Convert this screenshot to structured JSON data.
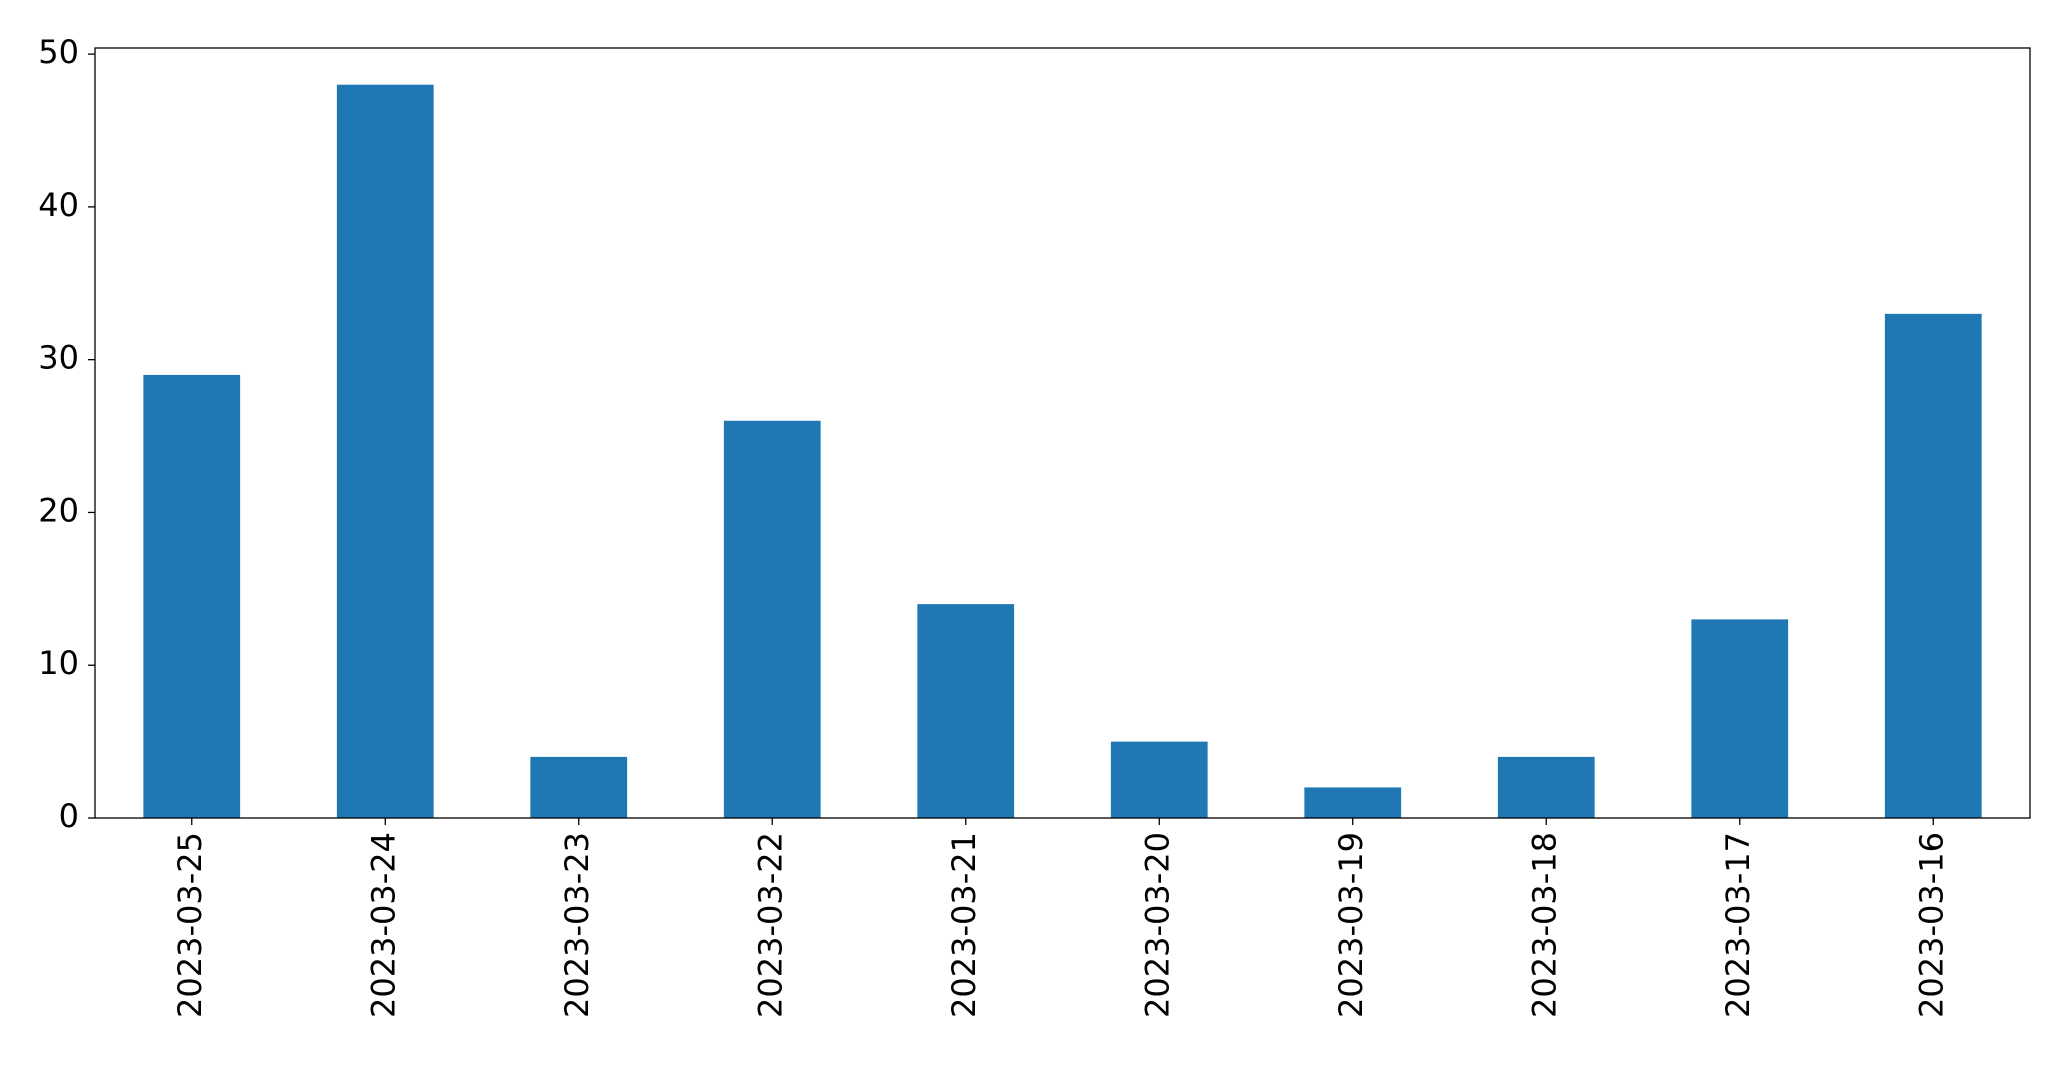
{
  "chart_data": {
    "type": "bar",
    "categories": [
      "2023-03-25",
      "2023-03-24",
      "2023-03-23",
      "2023-03-22",
      "2023-03-21",
      "2023-03-20",
      "2023-03-19",
      "2023-03-18",
      "2023-03-17",
      "2023-03-16"
    ],
    "values": [
      29,
      48,
      4,
      26,
      14,
      5,
      2,
      4,
      13,
      33
    ],
    "color": "#1f77b4",
    "ylim": [
      0,
      50.4
    ],
    "yticks": [
      0,
      10,
      20,
      30,
      40,
      50
    ],
    "grid": false
  }
}
